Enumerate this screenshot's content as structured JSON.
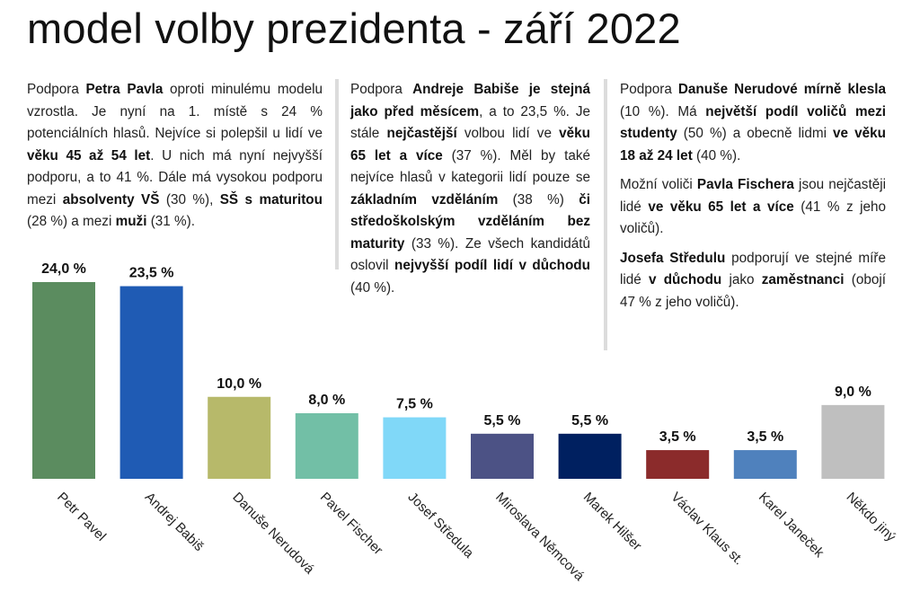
{
  "title": "model volby prezidenta - září 2022",
  "columns": [
    {
      "paragraphs": [
        [
          {
            "t": "Podpora "
          },
          {
            "t": "Petra Pavla",
            "b": true
          },
          {
            "t": " oproti minulému modelu vzrostla. Je nyní na 1. místě s 24 % potenciálních hlasů. Nejvíce si polepšil u lidí ve "
          },
          {
            "t": "věku 45 až 54 let",
            "b": true
          },
          {
            "t": ". U nich má nyní nejvyšší podporu, a to 41 %. Dále má vysokou podporu mezi "
          },
          {
            "t": "absolventy VŠ",
            "b": true
          },
          {
            "t": " (30 %), "
          },
          {
            "t": "SŠ s maturitou",
            "b": true
          },
          {
            "t": " (28 %) a mezi "
          },
          {
            "t": "muži",
            "b": true
          },
          {
            "t": " (31 %)."
          }
        ]
      ]
    },
    {
      "paragraphs": [
        [
          {
            "t": "Podpora "
          },
          {
            "t": "Andreje Babiše je stejná jako před měsícem",
            "b": true
          },
          {
            "t": ", a to 23,5 %. Je stále "
          },
          {
            "t": "nejčastější",
            "b": true
          },
          {
            "t": " volbou lidí ve "
          },
          {
            "t": "věku 65 let a více",
            "b": true
          },
          {
            "t": " (37 %). Měl by také nejvíce hlasů v kategorii lidí pouze se "
          },
          {
            "t": "základním vzděláním",
            "b": true
          },
          {
            "t": " (38 %) "
          },
          {
            "t": "či středoškolským vzděláním bez maturity",
            "b": true
          },
          {
            "t": " (33 %). Ze všech kandidátů oslovil "
          },
          {
            "t": "nejvyšší podíl lidí v důchodu",
            "b": true
          },
          {
            "t": " (40 %)."
          }
        ]
      ]
    },
    {
      "paragraphs": [
        [
          {
            "t": "Podpora "
          },
          {
            "t": "Danuše Nerudové mírně klesla",
            "b": true
          },
          {
            "t": " (10 %). Má "
          },
          {
            "t": "největší podíl voličů mezi studenty",
            "b": true
          },
          {
            "t": " (50 %) a obecně lidmi "
          },
          {
            "t": "ve věku 18 až 24 let",
            "b": true
          },
          {
            "t": " (40 %)."
          }
        ],
        [
          {
            "t": "Možní voliči "
          },
          {
            "t": "Pavla Fischera",
            "b": true
          },
          {
            "t": " jsou nejčastěji lidé "
          },
          {
            "t": "ve věku 65 let a více",
            "b": true
          },
          {
            "t": " (41 % z jeho voličů)."
          }
        ],
        [
          {
            "t": "Josefa Středulu",
            "b": true
          },
          {
            "t": " podporují ve stejné míře lidé "
          },
          {
            "t": "v důchodu",
            "b": true
          },
          {
            "t": " jako "
          },
          {
            "t": "zaměstnanci",
            "b": true
          },
          {
            "t": " (obojí 47 % z jeho voličů)."
          }
        ]
      ]
    }
  ],
  "chart_data": {
    "type": "bar",
    "categories": [
      "Petr Pavel",
      "Andrej Babiš",
      "Danuše Nerudová",
      "Pavel Fischer",
      "Josef Středula",
      "Miroslava Němcová",
      "Marek Hilšer",
      "Václav Klaus st.",
      "Karel Janeček",
      "Někdo jiný"
    ],
    "values": [
      24.0,
      23.5,
      10.0,
      8.0,
      7.5,
      5.5,
      5.5,
      3.5,
      3.5,
      9.0
    ],
    "data_labels": [
      "24,0 %",
      "23,5 %",
      "10,0 %",
      "8,0 %",
      "7,5 %",
      "5,5 %",
      "5,5 %",
      "3,5 %",
      "3,5 %",
      "9,0 %"
    ],
    "colors": [
      "#5b8c5f",
      "#1f5bb4",
      "#b7b96a",
      "#72bfa6",
      "#80d8f8",
      "#4c5285",
      "#002060",
      "#8b2b2b",
      "#4f81bd",
      "#bfbfbf"
    ],
    "ylim": [
      0,
      24.0
    ],
    "grid": false,
    "legend": "none",
    "xlabel": "",
    "ylabel": ""
  }
}
